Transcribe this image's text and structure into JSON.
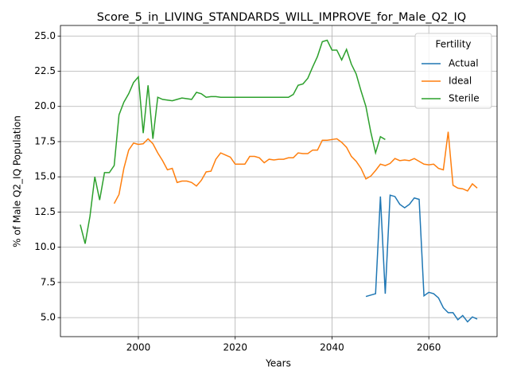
{
  "chart_data": {
    "type": "line",
    "title": "Score_5_in_LIVING_STANDARDS_WILL_IMPROVE_for_Male_Q2_IQ",
    "x_label": "Years",
    "y_label": "% of Male Q2_IQ Population",
    "x": [
      1988,
      1989,
      1990,
      1991,
      1992,
      1993,
      1994,
      1995,
      1996,
      1997,
      1998,
      1999,
      2000,
      2001,
      2002,
      2003,
      2004,
      2005,
      2006,
      2007,
      2008,
      2009,
      2010,
      2011,
      2012,
      2013,
      2014,
      2015,
      2016,
      2017,
      2018,
      2019,
      2020,
      2021,
      2022,
      2023,
      2024,
      2025,
      2026,
      2027,
      2028,
      2029,
      2030,
      2031,
      2032,
      2033,
      2034,
      2035,
      2036,
      2037,
      2038,
      2039,
      2040,
      2041,
      2042,
      2043,
      2044,
      2045,
      2046,
      2047,
      2048,
      2049,
      2050,
      2051,
      2052,
      2053,
      2054,
      2055,
      2056,
      2057,
      2058,
      2059,
      2060,
      2061,
      2062,
      2063,
      2064,
      2065,
      2066,
      2067,
      2068,
      2069,
      2070
    ],
    "series": [
      {
        "name": "Actual",
        "color": "#1f77b4",
        "values": [
          null,
          null,
          null,
          null,
          null,
          null,
          null,
          null,
          null,
          null,
          null,
          null,
          null,
          null,
          null,
          null,
          null,
          null,
          null,
          null,
          null,
          null,
          null,
          null,
          null,
          null,
          null,
          null,
          null,
          null,
          null,
          null,
          null,
          null,
          null,
          null,
          null,
          null,
          null,
          null,
          null,
          null,
          null,
          null,
          null,
          null,
          null,
          null,
          null,
          null,
          null,
          null,
          null,
          null,
          null,
          null,
          null,
          null,
          null,
          6.5,
          6.6,
          6.7,
          13.6,
          6.7,
          13.7,
          13.6,
          13.05,
          12.8,
          13.05,
          13.5,
          13.4,
          6.55,
          6.8,
          6.7,
          6.4,
          5.7,
          5.35,
          5.35,
          4.85,
          5.15,
          4.7,
          5.05,
          4.9
        ]
      },
      {
        "name": "Ideal",
        "color": "#ff7f0e",
        "values": [
          null,
          null,
          null,
          null,
          null,
          null,
          null,
          13.1,
          13.75,
          15.6,
          16.9,
          17.4,
          17.3,
          17.35,
          17.7,
          17.35,
          16.7,
          16.15,
          15.5,
          15.6,
          14.6,
          14.7,
          14.7,
          14.6,
          14.35,
          14.75,
          15.35,
          15.4,
          16.25,
          16.7,
          16.55,
          16.4,
          15.9,
          15.9,
          15.9,
          16.45,
          16.45,
          16.35,
          16.0,
          16.25,
          16.2,
          16.25,
          16.25,
          16.35,
          16.35,
          16.7,
          16.65,
          16.65,
          16.9,
          16.9,
          17.6,
          17.6,
          17.65,
          17.7,
          17.45,
          17.1,
          16.45,
          16.1,
          15.6,
          14.85,
          15.05,
          15.45,
          15.9,
          15.8,
          15.95,
          16.3,
          16.15,
          16.2,
          16.15,
          16.3,
          16.1,
          15.9,
          15.85,
          15.9,
          15.6,
          15.5,
          18.2,
          14.4,
          14.2,
          14.15,
          14.0,
          14.5,
          14.2
        ]
      },
      {
        "name": "Sterile",
        "color": "#2ca02c",
        "values": [
          11.6,
          10.25,
          12.2,
          15.0,
          13.35,
          15.3,
          15.3,
          15.8,
          19.4,
          20.3,
          20.9,
          21.7,
          22.1,
          18.1,
          21.5,
          17.7,
          20.65,
          20.5,
          20.45,
          20.4,
          20.5,
          20.6,
          20.55,
          20.5,
          21.0,
          20.9,
          20.65,
          20.7,
          20.7,
          20.65,
          20.65,
          20.65,
          20.65,
          20.65,
          20.65,
          20.65,
          20.65,
          20.65,
          20.65,
          20.65,
          20.65,
          20.65,
          20.65,
          20.65,
          20.85,
          21.5,
          21.6,
          22.0,
          22.8,
          23.55,
          24.6,
          24.7,
          24.0,
          24.0,
          23.3,
          24.05,
          23.0,
          22.3,
          21.1,
          20.0,
          18.2,
          16.7,
          17.85,
          17.65,
          null,
          null,
          null,
          null,
          null,
          null,
          null,
          null,
          null,
          null,
          null,
          null,
          null,
          null,
          null,
          null,
          null,
          null,
          null
        ]
      }
    ],
    "xlim": [
      1983.9,
      2074.1
    ],
    "xticks": [
      2000,
      2020,
      2040,
      2060
    ],
    "ylim": [
      3.65,
      25.75
    ],
    "yticks": [
      {
        "value": 5.0,
        "label": "5.0"
      },
      7.5,
      {
        "value": 10.0,
        "label": "10.0"
      },
      12.5,
      {
        "value": 15.0,
        "label": "15.0"
      },
      17.5,
      {
        "value": 20.0,
        "label": "20.0"
      },
      22.5,
      {
        "value": 25.0,
        "label": "25.0"
      }
    ],
    "grid": true,
    "legend_title": "Fertility",
    "legend_loc": "upper right"
  }
}
